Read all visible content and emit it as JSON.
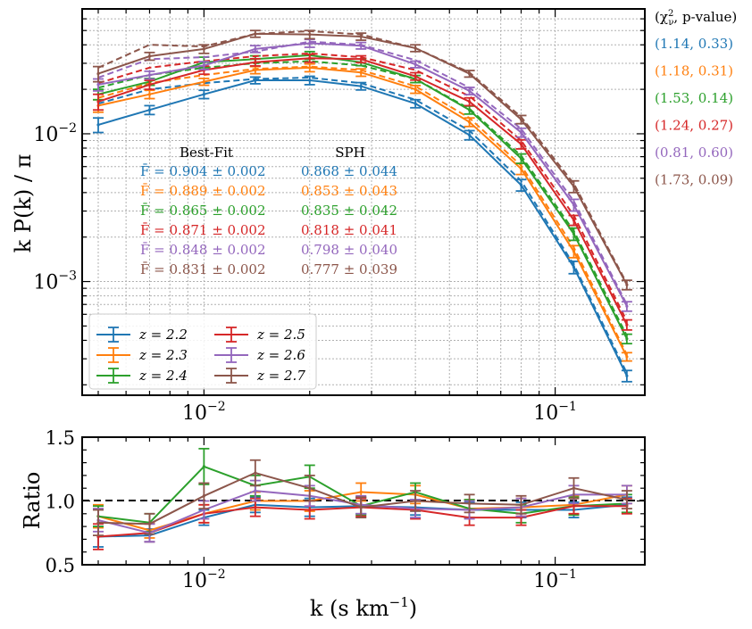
{
  "chart_data": [
    {
      "type": "line",
      "id": "power",
      "xscale": "log",
      "yscale": "log",
      "xlim": [
        0.0045,
        0.18
      ],
      "ylim": [
        0.00017,
        0.07
      ],
      "xlabel": "k (s km",
      "xlabel_sup": "−1",
      "xlabel_end": ")",
      "ylabel": "k P(k) / π",
      "grid": true,
      "x": [
        0.005,
        0.007,
        0.01,
        0.014,
        0.02,
        0.028,
        0.04,
        0.057,
        0.08,
        0.113,
        0.16
      ],
      "xticks": [
        {
          "value": 0.01,
          "base": "10",
          "exp": "−2"
        },
        {
          "value": 0.1,
          "base": "10",
          "exp": "−1"
        }
      ],
      "yticks": [
        {
          "value": 0.001,
          "base": "10",
          "exp": "−3"
        },
        {
          "value": 0.01,
          "base": "10",
          "exp": "−2"
        }
      ],
      "series": [
        {
          "name": "z = 2.2",
          "color": "#1f77b4",
          "values": [
            0.0115,
            0.0145,
            0.0185,
            0.023,
            0.023,
            0.021,
            0.016,
            0.0098,
            0.0045,
            0.00125,
            0.00023
          ],
          "errors": [
            0.0013,
            0.001,
            0.0012,
            0.0012,
            0.0015,
            0.0012,
            0.001,
            0.0007,
            0.0004,
            0.00012,
            2e-05
          ],
          "model": [
            0.016,
            0.02,
            0.022,
            0.0235,
            0.024,
            0.022,
            0.017,
            0.0105,
            0.0048,
            0.0013,
            0.00024
          ]
        },
        {
          "name": "z = 2.3",
          "color": "#ff7f0e",
          "values": [
            0.0155,
            0.0185,
            0.0225,
            0.027,
            0.028,
            0.026,
            0.02,
            0.012,
            0.0058,
            0.0016,
            0.00031
          ],
          "errors": [
            0.0015,
            0.0012,
            0.0012,
            0.0015,
            0.0017,
            0.0015,
            0.0012,
            0.0008,
            0.0005,
            0.00015,
            2e-05
          ],
          "model": [
            0.0175,
            0.022,
            0.025,
            0.0275,
            0.0285,
            0.027,
            0.021,
            0.0128,
            0.0061,
            0.0017,
            0.00032
          ]
        },
        {
          "name": "z = 2.4",
          "color": "#2ca02c",
          "values": [
            0.0185,
            0.0225,
            0.0305,
            0.032,
            0.034,
            0.0305,
            0.0235,
            0.0145,
            0.0068,
            0.0021,
            0.00041
          ],
          "errors": [
            0.0015,
            0.0012,
            0.0025,
            0.0017,
            0.002,
            0.0016,
            0.0013,
            0.0009,
            0.0005,
            0.0002,
            3e-05
          ],
          "model": [
            0.0205,
            0.025,
            0.028,
            0.03,
            0.031,
            0.029,
            0.0235,
            0.0148,
            0.0071,
            0.0022,
            0.00043
          ]
        },
        {
          "name": "z = 2.5",
          "color": "#d62728",
          "values": [
            0.0165,
            0.0215,
            0.027,
            0.0305,
            0.0325,
            0.032,
            0.0245,
            0.0165,
            0.0085,
            0.0026,
            0.00051
          ],
          "errors": [
            0.002,
            0.0015,
            0.0017,
            0.0017,
            0.002,
            0.0017,
            0.0014,
            0.001,
            0.0006,
            0.0002,
            4e-05
          ],
          "model": [
            0.022,
            0.028,
            0.031,
            0.0335,
            0.035,
            0.033,
            0.027,
            0.018,
            0.009,
            0.0028,
            0.00054
          ]
        },
        {
          "name": "z = 2.6",
          "color": "#9467bd",
          "values": [
            0.0215,
            0.025,
            0.029,
            0.0375,
            0.041,
            0.0395,
            0.0295,
            0.0195,
            0.0102,
            0.0033,
            0.00068
          ],
          "errors": [
            0.002,
            0.0015,
            0.0018,
            0.002,
            0.0025,
            0.002,
            0.0015,
            0.0011,
            0.0007,
            0.0003,
            5e-05
          ],
          "model": [
            0.024,
            0.032,
            0.033,
            0.036,
            0.042,
            0.04,
            0.0315,
            0.0205,
            0.0108,
            0.0035,
            0.0007
          ]
        },
        {
          "name": "z = 2.7",
          "color": "#8c564b",
          "values": [
            0.0255,
            0.0335,
            0.0375,
            0.0475,
            0.047,
            0.0455,
            0.038,
            0.0255,
            0.0125,
            0.0044,
            0.00095
          ],
          "errors": [
            0.003,
            0.002,
            0.0025,
            0.0025,
            0.003,
            0.0025,
            0.002,
            0.0013,
            0.0008,
            0.0004,
            7e-05
          ],
          "model": [
            0.028,
            0.04,
            0.039,
            0.0475,
            0.0495,
            0.047,
            0.038,
            0.026,
            0.013,
            0.0046,
            0.00097
          ]
        }
      ],
      "annotations": {
        "col_header_1": "Best-Fit",
        "col_header_2": "SPH",
        "rows": [
          {
            "fbar": "F̄ = 0.904 ± 0.002",
            "sph": "0.868 ± 0.044",
            "color": "#1f77b4"
          },
          {
            "fbar": "F̄ = 0.889 ± 0.002",
            "sph": "0.853 ± 0.043",
            "color": "#ff7f0e"
          },
          {
            "fbar": "F̄ = 0.865 ± 0.002",
            "sph": "0.835 ± 0.042",
            "color": "#2ca02c"
          },
          {
            "fbar": "F̄ = 0.871 ± 0.002",
            "sph": "0.818 ± 0.041",
            "color": "#d62728"
          },
          {
            "fbar": "F̄ = 0.848 ± 0.002",
            "sph": "0.798 ± 0.040",
            "color": "#9467bd"
          },
          {
            "fbar": "F̄ = 0.831 ± 0.002",
            "sph": "0.777 ± 0.039",
            "color": "#8c564b"
          }
        ]
      },
      "side_legend": {
        "title_prefix": "(χ",
        "title_sup": "2",
        "title_sub": "ν",
        "title_suffix": ", p-value)",
        "entries": [
          {
            "text": "(1.14, 0.33)",
            "color": "#1f77b4"
          },
          {
            "text": "(1.18, 0.31)",
            "color": "#ff7f0e"
          },
          {
            "text": "(1.53, 0.14)",
            "color": "#2ca02c"
          },
          {
            "text": "(1.24, 0.27)",
            "color": "#d62728"
          },
          {
            "text": "(0.81, 0.60)",
            "color": "#9467bd"
          },
          {
            "text": "(1.73, 0.09)",
            "color": "#8c564b"
          }
        ]
      },
      "legend_position": "lower-left"
    },
    {
      "type": "line",
      "id": "ratio",
      "xscale": "log",
      "yscale": "linear",
      "xlim": [
        0.0045,
        0.18
      ],
      "ylim": [
        0.5,
        1.5
      ],
      "ylabel": "Ratio",
      "reference_line": 1.0,
      "yticks": [
        "0.5",
        "1.0",
        "1.5"
      ],
      "x": [
        0.005,
        0.007,
        0.01,
        0.014,
        0.02,
        0.028,
        0.04,
        0.057,
        0.08,
        0.113,
        0.16
      ],
      "series": [
        {
          "name": "z = 2.2",
          "color": "#1f77b4",
          "values": [
            0.72,
            0.73,
            0.87,
            0.97,
            0.95,
            0.96,
            0.95,
            0.93,
            0.93,
            0.93,
            0.97
          ],
          "errors": [
            0.08,
            0.05,
            0.06,
            0.06,
            0.07,
            0.06,
            0.06,
            0.06,
            0.06,
            0.06,
            0.06
          ]
        },
        {
          "name": "z = 2.3",
          "color": "#ff7f0e",
          "values": [
            0.88,
            0.77,
            0.9,
            1.0,
            1.0,
            1.07,
            1.05,
            0.94,
            0.95,
            0.97,
            1.05
          ],
          "errors": [
            0.09,
            0.06,
            0.07,
            0.07,
            0.08,
            0.07,
            0.07,
            0.07,
            0.07,
            0.07,
            0.07
          ]
        },
        {
          "name": "z = 2.4",
          "color": "#2ca02c",
          "values": [
            0.88,
            0.83,
            1.27,
            1.12,
            1.19,
            0.96,
            1.07,
            0.94,
            0.9,
            0.96,
            0.98
          ],
          "errors": [
            0.08,
            0.07,
            0.14,
            0.08,
            0.09,
            0.07,
            0.07,
            0.07,
            0.07,
            0.07,
            0.07
          ]
        },
        {
          "name": "z = 2.5",
          "color": "#d62728",
          "values": [
            0.72,
            0.75,
            0.9,
            0.95,
            0.93,
            0.95,
            0.93,
            0.87,
            0.87,
            0.96,
            0.96
          ],
          "errors": [
            0.1,
            0.07,
            0.07,
            0.07,
            0.07,
            0.07,
            0.07,
            0.06,
            0.06,
            0.06,
            0.06
          ]
        },
        {
          "name": "z = 2.6",
          "color": "#9467bd",
          "values": [
            0.85,
            0.75,
            0.93,
            1.08,
            1.04,
            0.97,
            0.94,
            0.93,
            0.95,
            1.05,
            1.05
          ],
          "errors": [
            0.09,
            0.07,
            0.07,
            0.08,
            0.08,
            0.07,
            0.07,
            0.07,
            0.07,
            0.07,
            0.07
          ]
        },
        {
          "name": "z = 2.7",
          "color": "#8c564b",
          "values": [
            0.83,
            0.82,
            1.04,
            1.22,
            1.1,
            0.95,
            1.0,
            0.98,
            0.97,
            1.1,
            1.01
          ],
          "errors": [
            0.1,
            0.08,
            0.1,
            0.1,
            0.1,
            0.08,
            0.08,
            0.07,
            0.07,
            0.08,
            0.07
          ]
        }
      ]
    }
  ]
}
